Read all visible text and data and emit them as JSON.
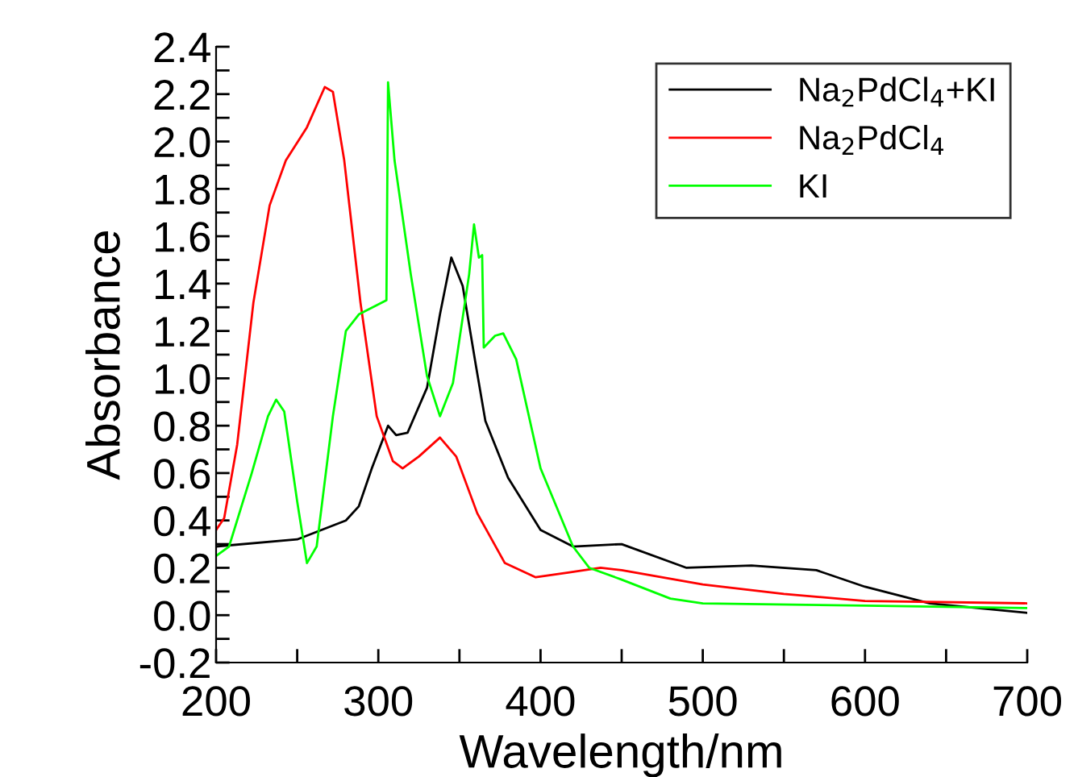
{
  "chart_data": {
    "type": "line",
    "xlabel": "Wavelength/nm",
    "ylabel": "Absorbance",
    "xlim": [
      200,
      700
    ],
    "xticks": [
      200,
      {
        "value": 250,
        "label": null
      },
      300,
      {
        "value": 350,
        "label": null
      },
      400,
      {
        "value": 450,
        "label": null
      },
      500,
      {
        "value": 550,
        "label": null
      },
      600,
      {
        "value": 650,
        "label": null
      },
      700
    ],
    "ylim": [
      -0.2,
      2.4
    ],
    "yticks": [
      -0.2,
      {
        "value": -0.1,
        "label": null
      },
      {
        "value": 0.0,
        "label": "0.0"
      },
      {
        "value": 0.1,
        "label": null
      },
      0.2,
      {
        "value": 0.3,
        "label": null
      },
      0.4,
      {
        "value": 0.5,
        "label": null
      },
      0.6,
      {
        "value": 0.7,
        "label": null
      },
      0.8,
      {
        "value": 0.9,
        "label": null
      },
      {
        "value": 1.0,
        "label": "1.0"
      },
      {
        "value": 1.1,
        "label": null
      },
      1.2,
      {
        "value": 1.3,
        "label": null
      },
      1.4,
      {
        "value": 1.5,
        "label": null
      },
      1.6,
      {
        "value": 1.7,
        "label": null
      },
      1.8,
      {
        "value": 1.9,
        "label": null
      },
      {
        "value": 2.0,
        "label": "2.0"
      },
      {
        "value": 2.1,
        "label": null
      },
      2.2,
      {
        "value": 2.3,
        "label": null
      },
      2.4
    ],
    "grid": false,
    "legend": "top right",
    "marker": "none",
    "line_style": "solid",
    "series": [
      {
        "name": "Na$_{2}$PdCl$_{4}$+KI",
        "color": "#000000",
        "x": [
          200,
          250,
          280,
          288,
          296,
          306,
          311,
          318,
          330,
          338,
          345,
          352,
          360,
          366,
          380,
          400,
          420,
          450,
          490,
          530,
          570,
          600,
          640,
          700
        ],
        "values": [
          0.29,
          0.32,
          0.4,
          0.46,
          0.62,
          0.8,
          0.76,
          0.77,
          0.96,
          1.27,
          1.51,
          1.39,
          1.06,
          0.82,
          0.58,
          0.36,
          0.29,
          0.3,
          0.2,
          0.21,
          0.19,
          0.12,
          0.05,
          0.01
        ]
      },
      {
        "name": "Na$_{2}$PdCl$_{4}$",
        "color": "#ff0000",
        "x": [
          200,
          205,
          213,
          223,
          233,
          243,
          256,
          267,
          272,
          279,
          289,
          299,
          309,
          315,
          325,
          338,
          348,
          361,
          378,
          397,
          417,
          437,
          450,
          500,
          550,
          600,
          700
        ],
        "values": [
          0.36,
          0.41,
          0.72,
          1.32,
          1.73,
          1.92,
          2.06,
          2.23,
          2.21,
          1.92,
          1.32,
          0.84,
          0.65,
          0.62,
          0.67,
          0.75,
          0.67,
          0.43,
          0.22,
          0.16,
          0.18,
          0.2,
          0.19,
          0.13,
          0.09,
          0.06,
          0.05
        ]
      },
      {
        "name": "KI",
        "color": "#00ff00",
        "x": [
          200,
          208,
          222,
          232,
          237,
          242,
          250,
          256,
          262,
          272,
          280,
          288,
          305,
          306,
          310,
          320,
          330,
          338,
          346,
          356,
          359,
          362,
          364,
          365,
          372,
          377,
          385,
          400,
          420,
          430,
          450,
          480,
          500,
          600,
          700
        ],
        "values": [
          0.25,
          0.29,
          0.6,
          0.84,
          0.91,
          0.86,
          0.48,
          0.22,
          0.29,
          0.84,
          1.2,
          1.27,
          1.33,
          2.25,
          1.92,
          1.44,
          1.01,
          0.84,
          0.98,
          1.44,
          1.65,
          1.51,
          1.52,
          1.13,
          1.18,
          1.19,
          1.08,
          0.62,
          0.29,
          0.2,
          0.15,
          0.07,
          0.05,
          0.04,
          0.03
        ]
      }
    ]
  }
}
